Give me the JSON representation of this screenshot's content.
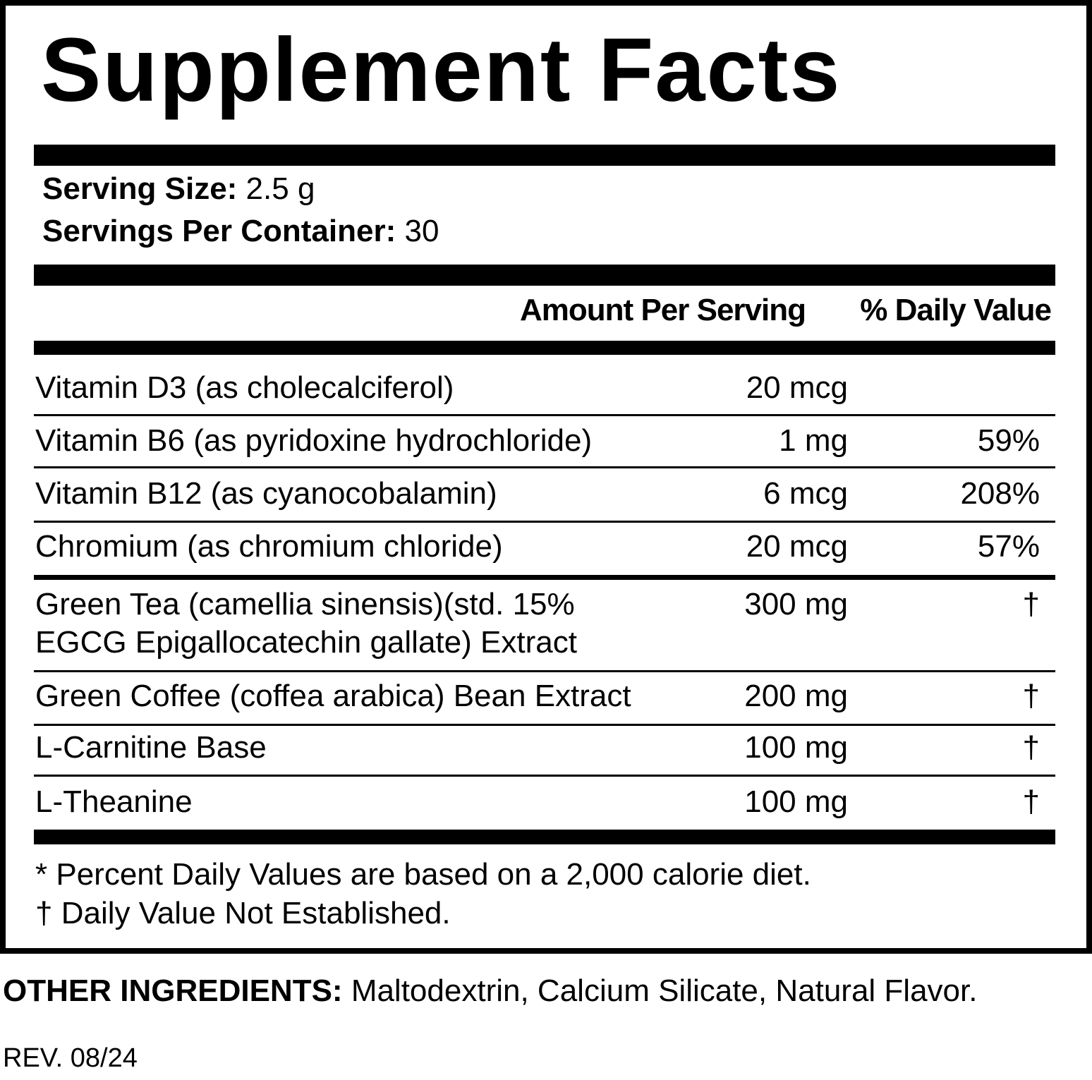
{
  "title": "Supplement Facts",
  "serving": {
    "size_label": "Serving Size:",
    "size": "2.5 g",
    "per_container_label": "Servings Per Container:",
    "per_container": "30"
  },
  "columns": {
    "amount": "Amount Per Serving",
    "daily_value": "% Daily Value"
  },
  "rows": [
    {
      "name": [
        "Vitamin D3 (as cholecalciferol)"
      ],
      "amount": "20 mcg"
    },
    {
      "name": [
        "Vitamin B6 (as pyridoxine hydrochloride)"
      ],
      "amount": "1 mg",
      "daily_value": "59%"
    },
    {
      "name": [
        "Vitamin B12 (as cyanocobalamin)"
      ],
      "amount": "6 mcg",
      "daily_value": "208%"
    },
    {
      "name": [
        "Chromium (as chromium chloride)"
      ],
      "amount": "20 mcg",
      "daily_value": "57%"
    },
    {
      "name": [
        "Green Tea (camellia sinensis)(std. 15%",
        "EGCG Epigallocatechin gallate) Extract"
      ],
      "amount": "300 mg",
      "daily_value": "†"
    },
    {
      "name": [
        "Green Coffee (coffea arabica) Bean Extract"
      ],
      "amount": "200 mg",
      "daily_value": "†"
    },
    {
      "name": [
        "L-Carnitine Base"
      ],
      "amount": "100 mg",
      "daily_value": "†"
    },
    {
      "name": [
        "L-Theanine"
      ],
      "amount": "100 mg",
      "daily_value": "†"
    }
  ],
  "footnotes": [
    "* Percent Daily Values are based on a 2,000 calorie diet.",
    "† Daily Value Not Established."
  ],
  "other_ingredients": {
    "label": "OTHER INGREDIENTS:",
    "text": "Maltodextrin, Calcium Silicate, Natural Flavor."
  },
  "revision": "REV. 08/24"
}
